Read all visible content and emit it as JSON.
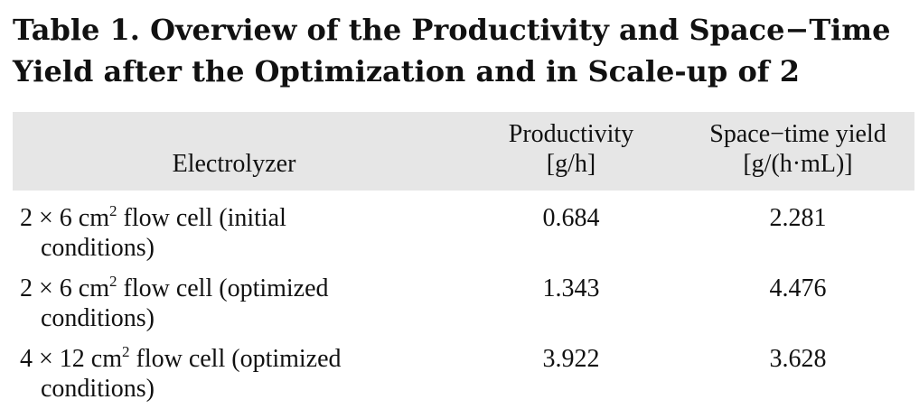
{
  "caption": {
    "line1": "Table 1. Overview of the Productivity and Space−Time",
    "line2": "Yield after the Optimization and in Scale-up of 2"
  },
  "table": {
    "headers": {
      "electrolyzer": "Electrolyzer",
      "productivity_l1": "Productivity",
      "productivity_l2": "[g/h]",
      "space_time_l1": "Space−time yield",
      "space_time_l2": "[g/(h·mL)]"
    },
    "rows": [
      {
        "prefix": "2 × 6 cm",
        "exp": "2",
        "suffix": " flow cell (initial",
        "cont": "conditions)",
        "productivity": "0.684",
        "space_time_yield": "2.281"
      },
      {
        "prefix": "2 × 6 cm",
        "exp": "2",
        "suffix": " flow cell (optimized",
        "cont": "conditions)",
        "productivity": "1.343",
        "space_time_yield": "4.476"
      },
      {
        "prefix": "4 × 12 cm",
        "exp": "2",
        "suffix": " flow cell (optimized",
        "cont": "conditions)",
        "productivity": "3.922",
        "space_time_yield": "3.628"
      }
    ]
  }
}
